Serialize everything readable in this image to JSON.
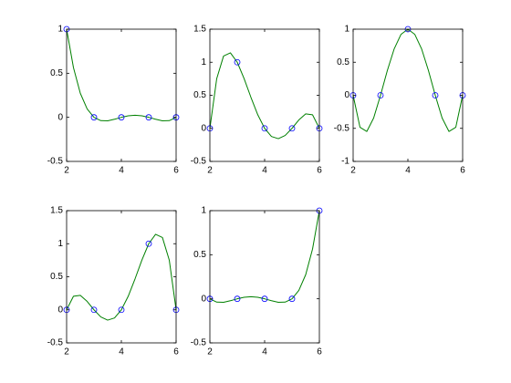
{
  "chart_data": [
    {
      "type": "line",
      "xlim": [
        2,
        6
      ],
      "xticks": [
        2,
        4,
        6
      ],
      "ylim": [
        -0.5,
        1
      ],
      "yticks": [
        -0.5,
        0,
        0.5,
        1
      ],
      "series": [
        {
          "color": "#008000",
          "x": [
            2,
            2.25,
            2.5,
            2.75,
            3,
            3.25,
            3.5,
            3.75,
            4,
            4.25,
            4.5,
            4.75,
            5,
            5.25,
            5.5,
            5.75,
            6
          ],
          "values": [
            1,
            0.564,
            0.2734,
            0.0952,
            0,
            -0.0376,
            -0.0391,
            -0.022,
            0,
            0.0171,
            0.0234,
            0.0171,
            0,
            -0.022,
            -0.0391,
            -0.0376,
            0
          ]
        },
        {
          "color": "#0000ff",
          "marker": "o",
          "x": [
            2,
            3,
            4,
            5,
            6
          ],
          "values": [
            1,
            0,
            0,
            0,
            0
          ]
        }
      ]
    },
    {
      "type": "line",
      "xlim": [
        2,
        6
      ],
      "xticks": [
        2,
        4,
        6
      ],
      "ylim": [
        -0.5,
        1.5
      ],
      "yticks": [
        -0.5,
        0,
        0.5,
        1,
        1.5
      ],
      "series": [
        {
          "color": "#008000",
          "x": [
            2,
            2.25,
            2.5,
            2.75,
            3,
            3.25,
            3.5,
            3.75,
            4,
            4.25,
            4.5,
            4.75,
            5,
            5.25,
            5.5,
            5.75,
            6
          ],
          "values": [
            0,
            0.752,
            1.0938,
            1.1426,
            1,
            0.752,
            0.4688,
            0.2051,
            0,
            -0.123,
            -0.1563,
            -0.1074,
            0,
            0.127,
            0.2188,
            0.2051,
            0
          ]
        },
        {
          "color": "#0000ff",
          "marker": "o",
          "x": [
            2,
            3,
            4,
            5,
            6
          ],
          "values": [
            0,
            1,
            0,
            0,
            0
          ]
        }
      ]
    },
    {
      "type": "line",
      "xlim": [
        2,
        6
      ],
      "xticks": [
        2,
        4,
        6
      ],
      "ylim": [
        -1,
        1
      ],
      "yticks": [
        -1,
        -0.5,
        0,
        0.5,
        1
      ],
      "series": [
        {
          "color": "#008000",
          "x": [
            2,
            2.25,
            2.5,
            2.75,
            3,
            3.25,
            3.5,
            3.75,
            4,
            4.25,
            4.5,
            4.75,
            5,
            5.25,
            5.5,
            5.75,
            6
          ],
          "values": [
            0,
            -0.4834,
            -0.5469,
            -0.3428,
            0,
            0.376,
            0.7031,
            0.9229,
            1,
            0.9229,
            0.7031,
            0.376,
            0,
            -0.3428,
            -0.5469,
            -0.4834,
            0
          ]
        },
        {
          "color": "#0000ff",
          "marker": "o",
          "x": [
            2,
            3,
            4,
            5,
            6
          ],
          "values": [
            0,
            0,
            1,
            0,
            0
          ]
        }
      ]
    },
    {
      "type": "line",
      "xlim": [
        2,
        6
      ],
      "xticks": [
        2,
        4,
        6
      ],
      "ylim": [
        -0.5,
        1.5
      ],
      "yticks": [
        -0.5,
        0,
        0.5,
        1,
        1.5
      ],
      "series": [
        {
          "color": "#008000",
          "x": [
            2,
            2.25,
            2.5,
            2.75,
            3,
            3.25,
            3.5,
            3.75,
            4,
            4.25,
            4.5,
            4.75,
            5,
            5.25,
            5.5,
            5.75,
            6
          ],
          "values": [
            0,
            0.2051,
            0.2188,
            0.127,
            0,
            -0.1074,
            -0.1563,
            -0.123,
            0,
            0.2051,
            0.4688,
            0.752,
            1,
            1.1426,
            1.0938,
            0.752,
            0
          ]
        },
        {
          "color": "#0000ff",
          "marker": "o",
          "x": [
            2,
            3,
            4,
            5,
            6
          ],
          "values": [
            0,
            0,
            0,
            1,
            0
          ]
        }
      ]
    },
    {
      "type": "line",
      "xlim": [
        2,
        6
      ],
      "xticks": [
        2,
        4,
        6
      ],
      "ylim": [
        -0.5,
        1
      ],
      "yticks": [
        -0.5,
        0,
        0.5,
        1
      ],
      "series": [
        {
          "color": "#008000",
          "x": [
            2,
            2.25,
            2.5,
            2.75,
            3,
            3.25,
            3.5,
            3.75,
            4,
            4.25,
            4.5,
            4.75,
            5,
            5.25,
            5.5,
            5.75,
            6
          ],
          "values": [
            0,
            -0.0376,
            -0.0391,
            -0.022,
            0,
            0.0171,
            0.0234,
            0.0171,
            0,
            -0.022,
            -0.0391,
            -0.0376,
            0,
            0.0952,
            0.2734,
            0.564,
            1
          ]
        },
        {
          "color": "#0000ff",
          "marker": "o",
          "x": [
            2,
            3,
            4,
            5,
            6
          ],
          "values": [
            0,
            0,
            0,
            0,
            1
          ]
        }
      ]
    }
  ]
}
